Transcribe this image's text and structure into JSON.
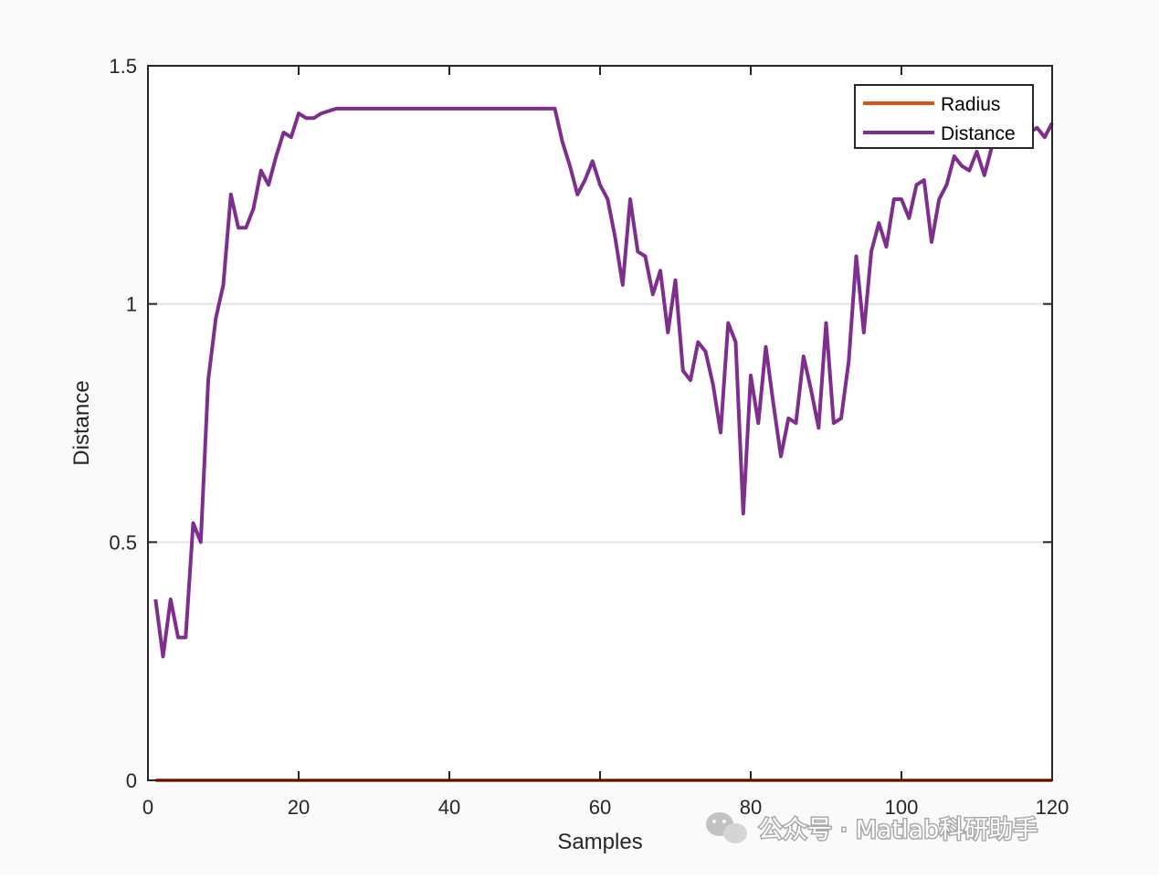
{
  "chart_data": {
    "type": "line",
    "xlabel": "Samples",
    "ylabel": "Distance",
    "xlim": [
      0,
      120
    ],
    "ylim": [
      0,
      1.5
    ],
    "xticks": [
      0,
      20,
      40,
      60,
      80,
      100,
      120
    ],
    "yticks": [
      0,
      0.5,
      1,
      1.5
    ],
    "xtick_labels": [
      "0",
      "20",
      "40",
      "60",
      "80",
      "100",
      "120"
    ],
    "ytick_labels": [
      "0",
      "0.5",
      "1",
      "1.5"
    ],
    "grid": "y-major",
    "legend": "top-right",
    "series": [
      {
        "name": "Radius",
        "color": "#d95319",
        "x": [
          1,
          120
        ],
        "y": [
          0,
          0
        ]
      },
      {
        "name": "Distance",
        "color": "#7e2f8e",
        "x": [
          1,
          2,
          3,
          4,
          5,
          6,
          7,
          8,
          9,
          10,
          11,
          12,
          13,
          14,
          15,
          16,
          17,
          18,
          19,
          20,
          21,
          22,
          23,
          24,
          25,
          26,
          27,
          28,
          29,
          30,
          31,
          32,
          33,
          34,
          35,
          36,
          37,
          38,
          39,
          40,
          41,
          42,
          43,
          44,
          45,
          46,
          47,
          48,
          49,
          50,
          51,
          52,
          53,
          54,
          55,
          56,
          57,
          58,
          59,
          60,
          61,
          62,
          63,
          64,
          65,
          66,
          67,
          68,
          69,
          70,
          71,
          72,
          73,
          74,
          75,
          76,
          77,
          78,
          79,
          80,
          81,
          82,
          83,
          84,
          85,
          86,
          87,
          88,
          89,
          90,
          91,
          92,
          93,
          94,
          95,
          96,
          97,
          98,
          99,
          100,
          101,
          102,
          103,
          104,
          105,
          106,
          107,
          108,
          109,
          110,
          111,
          112,
          113,
          114,
          115,
          116,
          117,
          118,
          119,
          120
        ],
        "y": [
          0.38,
          0.26,
          0.38,
          0.3,
          0.3,
          0.54,
          0.5,
          0.84,
          0.97,
          1.04,
          1.23,
          1.16,
          1.16,
          1.2,
          1.28,
          1.25,
          1.31,
          1.36,
          1.35,
          1.4,
          1.39,
          1.39,
          1.4,
          1.405,
          1.41,
          1.41,
          1.41,
          1.41,
          1.41,
          1.41,
          1.41,
          1.41,
          1.41,
          1.41,
          1.41,
          1.41,
          1.41,
          1.41,
          1.41,
          1.41,
          1.41,
          1.41,
          1.41,
          1.41,
          1.41,
          1.41,
          1.41,
          1.41,
          1.41,
          1.41,
          1.41,
          1.41,
          1.41,
          1.41,
          1.34,
          1.29,
          1.23,
          1.26,
          1.3,
          1.25,
          1.22,
          1.14,
          1.04,
          1.22,
          1.11,
          1.1,
          1.02,
          1.07,
          0.94,
          1.05,
          0.86,
          0.84,
          0.92,
          0.9,
          0.83,
          0.73,
          0.96,
          0.92,
          0.56,
          0.85,
          0.75,
          0.91,
          0.79,
          0.68,
          0.76,
          0.75,
          0.89,
          0.82,
          0.74,
          0.96,
          0.75,
          0.76,
          0.88,
          1.1,
          0.94,
          1.11,
          1.17,
          1.12,
          1.22,
          1.22,
          1.18,
          1.25,
          1.26,
          1.13,
          1.22,
          1.25,
          1.31,
          1.29,
          1.28,
          1.32,
          1.27,
          1.33,
          1.36,
          1.34,
          1.35,
          1.36,
          1.36,
          1.37,
          1.35,
          1.38
        ]
      }
    ]
  },
  "watermark": {
    "text": "公众号 · Matlab科研助手",
    "icon": "wechat-icon"
  }
}
